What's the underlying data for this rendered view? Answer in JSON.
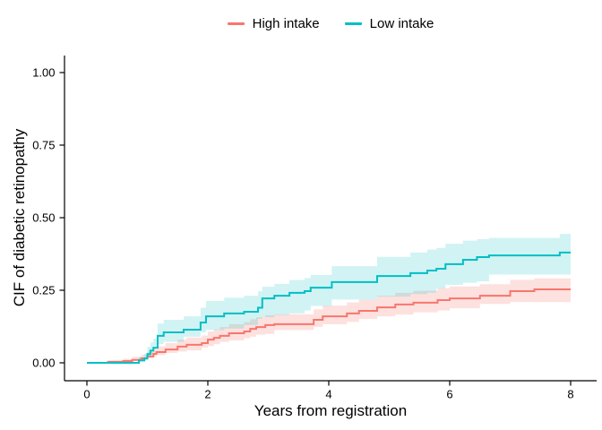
{
  "figure": {
    "background": "#FFFFFF",
    "legend_items": [
      {
        "label": "High intake",
        "color": "#F8766D"
      },
      {
        "label": "Low intake",
        "color": "#00BFC4"
      }
    ]
  },
  "chart_data": {
    "type": "line",
    "subtype": "step_cumulative_incidence_with_confidence_bands",
    "title": "",
    "xlabel": "Years from registration",
    "ylabel": "CIF of diabetic retinopathy",
    "xlim": [
      0,
      8
    ],
    "ylim": [
      0,
      1
    ],
    "grid": false,
    "legend_position": "top-center",
    "axis_color": "#000000",
    "xticks": [
      {
        "v": 0,
        "label": "0"
      },
      {
        "v": 2,
        "label": "2"
      },
      {
        "v": 4,
        "label": "4"
      },
      {
        "v": 6,
        "label": "6"
      },
      {
        "v": 8,
        "label": "8"
      }
    ],
    "yticks": [
      {
        "v": 0.0,
        "label": "0.00"
      },
      {
        "v": 0.25,
        "label": "0.25"
      },
      {
        "v": 0.5,
        "label": "0.50"
      },
      {
        "v": 0.75,
        "label": "0.75"
      },
      {
        "v": 1.0,
        "label": "1.00"
      }
    ],
    "series": [
      {
        "name": "High intake",
        "color": "#F8766D",
        "band_opacity": 0.22,
        "points_format": [
          "year",
          "cif",
          "ci_low",
          "ci_high"
        ],
        "points": [
          [
            0.0,
            0.0,
            0.0,
            0.0
          ],
          [
            0.35,
            0.003,
            0.0,
            0.009
          ],
          [
            0.6,
            0.006,
            0.001,
            0.014
          ],
          [
            0.75,
            0.01,
            0.003,
            0.021
          ],
          [
            0.9,
            0.015,
            0.006,
            0.028
          ],
          [
            1.0,
            0.022,
            0.01,
            0.038
          ],
          [
            1.1,
            0.031,
            0.016,
            0.05
          ],
          [
            1.15,
            0.037,
            0.02,
            0.057
          ],
          [
            1.3,
            0.046,
            0.027,
            0.068
          ],
          [
            1.5,
            0.056,
            0.034,
            0.08
          ],
          [
            1.65,
            0.062,
            0.039,
            0.087
          ],
          [
            1.9,
            0.068,
            0.043,
            0.094
          ],
          [
            2.0,
            0.08,
            0.053,
            0.108
          ],
          [
            2.1,
            0.086,
            0.058,
            0.115
          ],
          [
            2.2,
            0.093,
            0.064,
            0.123
          ],
          [
            2.35,
            0.102,
            0.072,
            0.133
          ],
          [
            2.6,
            0.108,
            0.077,
            0.14
          ],
          [
            2.7,
            0.117,
            0.085,
            0.15
          ],
          [
            2.8,
            0.123,
            0.09,
            0.157
          ],
          [
            2.95,
            0.13,
            0.097,
            0.164
          ],
          [
            3.1,
            0.133,
            0.1,
            0.167
          ],
          [
            3.75,
            0.148,
            0.113,
            0.184
          ],
          [
            3.9,
            0.16,
            0.124,
            0.197
          ],
          [
            4.3,
            0.17,
            0.133,
            0.208
          ],
          [
            4.5,
            0.179,
            0.141,
            0.218
          ],
          [
            4.8,
            0.191,
            0.151,
            0.231
          ],
          [
            5.1,
            0.201,
            0.16,
            0.241
          ],
          [
            5.4,
            0.207,
            0.166,
            0.248
          ],
          [
            5.8,
            0.216,
            0.174,
            0.257
          ],
          [
            6.0,
            0.222,
            0.18,
            0.263
          ],
          [
            6.5,
            0.231,
            0.188,
            0.271
          ],
          [
            7.0,
            0.247,
            0.203,
            0.286
          ],
          [
            7.4,
            0.253,
            0.209,
            0.291
          ],
          [
            8.0,
            0.253,
            0.209,
            0.291
          ]
        ]
      },
      {
        "name": "Low intake",
        "color": "#00BFC4",
        "band_opacity": 0.18,
        "points_format": [
          "year",
          "cif",
          "ci_low",
          "ci_high"
        ],
        "points": [
          [
            0.0,
            0.0,
            0.0,
            0.0
          ],
          [
            0.86,
            0.008,
            0.002,
            0.02
          ],
          [
            0.95,
            0.015,
            0.006,
            0.032
          ],
          [
            1.0,
            0.03,
            0.014,
            0.055
          ],
          [
            1.05,
            0.042,
            0.022,
            0.07
          ],
          [
            1.1,
            0.052,
            0.028,
            0.083
          ],
          [
            1.17,
            0.093,
            0.057,
            0.135
          ],
          [
            1.27,
            0.105,
            0.065,
            0.148
          ],
          [
            1.6,
            0.114,
            0.072,
            0.16
          ],
          [
            1.88,
            0.139,
            0.09,
            0.19
          ],
          [
            1.97,
            0.16,
            0.105,
            0.213
          ],
          [
            2.27,
            0.17,
            0.113,
            0.224
          ],
          [
            2.6,
            0.176,
            0.118,
            0.231
          ],
          [
            2.83,
            0.19,
            0.13,
            0.246
          ],
          [
            2.9,
            0.222,
            0.152,
            0.262
          ],
          [
            3.1,
            0.231,
            0.157,
            0.272
          ],
          [
            3.35,
            0.241,
            0.165,
            0.285
          ],
          [
            3.6,
            0.247,
            0.17,
            0.292
          ],
          [
            3.7,
            0.259,
            0.18,
            0.303
          ],
          [
            4.05,
            0.278,
            0.196,
            0.333
          ],
          [
            4.8,
            0.299,
            0.218,
            0.365
          ],
          [
            5.35,
            0.309,
            0.228,
            0.38
          ],
          [
            5.63,
            0.318,
            0.237,
            0.39
          ],
          [
            5.78,
            0.324,
            0.242,
            0.396
          ],
          [
            5.93,
            0.34,
            0.256,
            0.41
          ],
          [
            6.22,
            0.355,
            0.269,
            0.421
          ],
          [
            6.45,
            0.364,
            0.276,
            0.426
          ],
          [
            6.65,
            0.37,
            0.281,
            0.43
          ],
          [
            7.82,
            0.38,
            0.304,
            0.444
          ],
          [
            8.0,
            0.38,
            0.304,
            0.444
          ]
        ]
      }
    ]
  }
}
